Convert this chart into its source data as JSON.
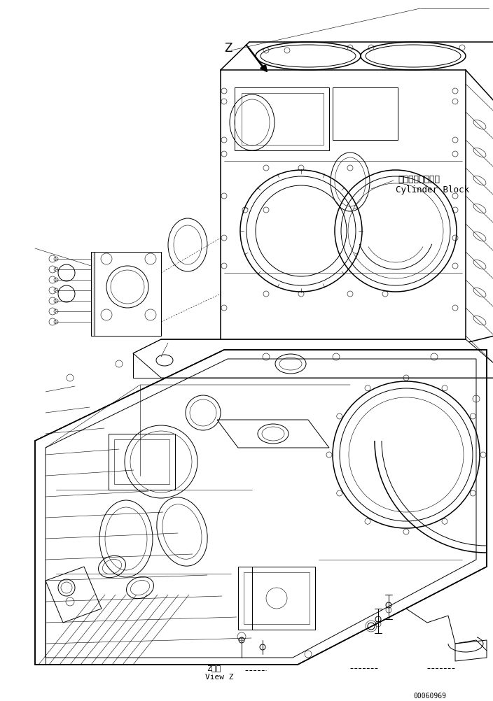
{
  "background_color": "#ffffff",
  "label_japanese": "シリンダブロック",
  "label_english": "Cylinder Block",
  "bottom_label_japanese": "Z　視",
  "bottom_label_english": "View Z",
  "part_number": "00060969",
  "fig_width": 7.04,
  "fig_height": 10.02,
  "dpi": 100,
  "lc": "#000000",
  "lw": 0.7,
  "tlw": 0.4,
  "thklw": 1.1
}
